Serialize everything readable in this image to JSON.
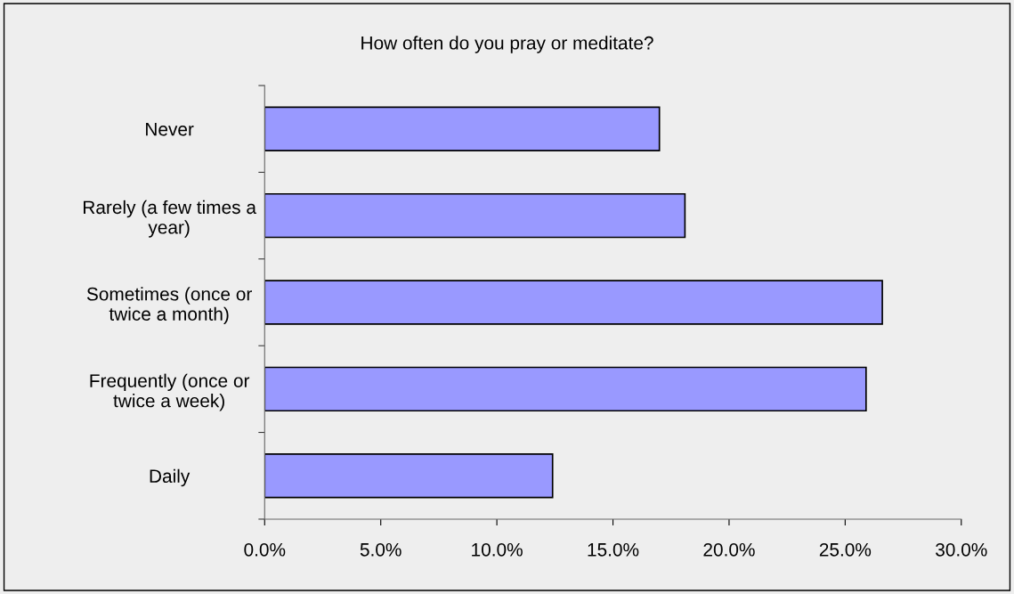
{
  "chart_data": {
    "type": "bar",
    "orientation": "horizontal",
    "title": "How often do you pray or meditate?",
    "categories": [
      "Never",
      "Rarely (a few times a\nyear)",
      "Sometimes (once or\ntwice a month)",
      "Frequently (once or\ntwice a week)",
      "Daily"
    ],
    "values": [
      17.0,
      18.1,
      26.6,
      25.9,
      12.4
    ],
    "color": "#9999ff",
    "xlim": [
      0,
      30
    ],
    "xticks": [
      {
        "value": 0,
        "label": "0.0%"
      },
      {
        "value": 5,
        "label": "5.0%"
      },
      {
        "value": 10,
        "label": "10.0%"
      },
      {
        "value": 15,
        "label": "15.0%"
      },
      {
        "value": 20,
        "label": "20.0%"
      },
      {
        "value": 25,
        "label": "25.0%"
      },
      {
        "value": 30,
        "label": "30.0%"
      }
    ],
    "grid": false,
    "legend": false
  }
}
